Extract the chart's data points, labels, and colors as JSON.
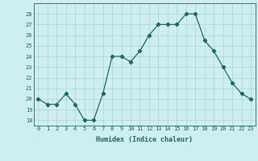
{
  "xlabel": "Humidex (Indice chaleur)",
  "x": [
    0,
    1,
    2,
    3,
    4,
    5,
    6,
    7,
    8,
    9,
    10,
    11,
    12,
    13,
    14,
    15,
    16,
    17,
    18,
    19,
    20,
    21,
    22,
    23
  ],
  "y": [
    20,
    19.5,
    19.5,
    20.5,
    19.5,
    18,
    18,
    20.5,
    24,
    24,
    23.5,
    24.5,
    26,
    27,
    27,
    27,
    28,
    28,
    25.5,
    24.5,
    23,
    21.5,
    20.5,
    20
  ],
  "ylim": [
    17.5,
    29
  ],
  "yticks": [
    18,
    19,
    20,
    21,
    22,
    23,
    24,
    25,
    26,
    27,
    28
  ],
  "line_color": "#1a6b5a",
  "marker": "D",
  "marker_size": 2.2,
  "bg_color": "#ceeef0",
  "grid_color": "#b0d8da",
  "axis_label_color": "#1a6b5a",
  "tick_color": "#1a6b5a",
  "font_family": "monospace",
  "tick_fontsize": 5.0,
  "xlabel_fontsize": 6.0
}
